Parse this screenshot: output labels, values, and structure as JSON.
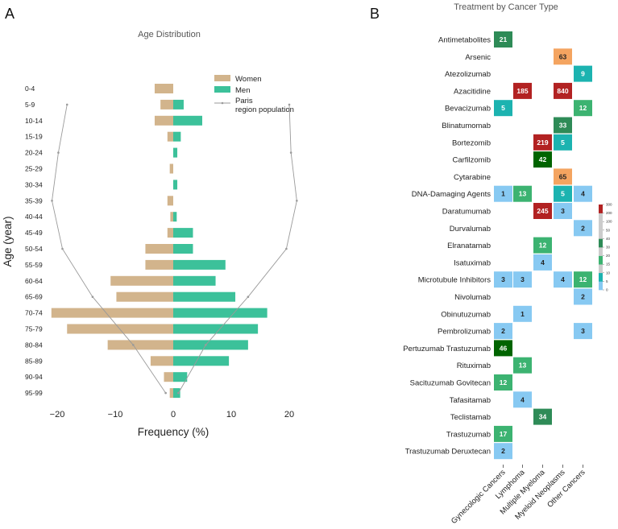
{
  "panels": {
    "left_letter": "A",
    "right_letter": "B"
  },
  "chart_data": [
    {
      "type": "bar",
      "orientation": "horizontal-pyramid",
      "title": "Age Distribution",
      "xlabel": "Frequency (%)",
      "ylabel": "Age (year)",
      "xlim": [
        -23,
        23
      ],
      "xticks": [
        -20,
        -10,
        0,
        10,
        20
      ],
      "xtick_labels": [
        "−20",
        "−10",
        "0",
        "10",
        "20"
      ],
      "categories": [
        "0-4",
        "5-9",
        "10-14",
        "15-19",
        "20-24",
        "25-29",
        "30-34",
        "35-39",
        "40-44",
        "45-49",
        "50-54",
        "55-59",
        "60-64",
        "65-69",
        "70-74",
        "75-79",
        "80-84",
        "85-89",
        "90-94",
        "95-99"
      ],
      "series": [
        {
          "name": "Women",
          "color": "#d2b48c",
          "values": [
            -3.2,
            -2.2,
            -3.2,
            -1.0,
            0.0,
            -0.6,
            0.0,
            -1.0,
            -0.5,
            -1.0,
            -4.8,
            -4.8,
            -10.8,
            -9.8,
            -21.0,
            -18.3,
            -11.3,
            -3.9,
            -1.6,
            -0.6
          ]
        },
        {
          "name": "Men",
          "color": "#3cc19a",
          "values": [
            0.0,
            1.8,
            5.0,
            1.3,
            0.7,
            0.0,
            0.7,
            0.0,
            0.6,
            3.4,
            3.4,
            9.0,
            7.3,
            10.7,
            16.2,
            14.6,
            12.9,
            9.6,
            2.4,
            1.2
          ]
        },
        {
          "name": "Paris region population",
          "color": "#9a9a9a",
          "style": "line",
          "left": [
            null,
            -18.3,
            null,
            null,
            -19.8,
            null,
            null,
            -20.9,
            null,
            null,
            -19.1,
            null,
            null,
            -13.9,
            null,
            null,
            -6.9,
            null,
            null,
            -1.3
          ],
          "right": [
            null,
            20.0,
            null,
            null,
            20.3,
            null,
            null,
            21.3,
            null,
            null,
            19.5,
            null,
            null,
            12.9,
            null,
            null,
            5.6,
            null,
            null,
            0.9
          ]
        }
      ],
      "legend_labels": [
        "Women",
        "Men",
        "Paris",
        "region population"
      ]
    },
    {
      "type": "heatmap",
      "title": "Treatment by Cancer Type",
      "rows": [
        "Antimetabolites",
        "Arsenic",
        "Atezolizumab",
        "Azacitidine",
        "Bevacizumab",
        "Blinatumomab",
        "Bortezomib",
        "Carfilzomib",
        "Cytarabine",
        "DNA-Damaging Agents",
        "Daratumumab",
        "Durvalumab",
        "Elranatamab",
        "Isatuximab",
        "Microtubule Inhibitors",
        "Nivolumab",
        "Obinutuzumab",
        "Pembrolizumab",
        "Pertuzumab Trastuzumab",
        "Rituximab",
        "Sacituzumab Govitecan",
        "Tafasitamab",
        "Teclistamab",
        "Trastuzumab",
        "Trastuzumab Deruxtecan"
      ],
      "columns": [
        "Gynecologic Cancers",
        "Lymphoma",
        "Multiple Myeloma",
        "Myeloid Neoplasms",
        "Other Cancers"
      ],
      "values": [
        [
          21,
          null,
          null,
          null,
          null
        ],
        [
          null,
          null,
          null,
          63,
          null
        ],
        [
          null,
          null,
          null,
          null,
          9
        ],
        [
          null,
          185,
          null,
          840,
          null
        ],
        [
          5,
          null,
          null,
          null,
          12
        ],
        [
          null,
          null,
          null,
          33,
          null
        ],
        [
          null,
          null,
          219,
          5,
          null
        ],
        [
          null,
          null,
          42,
          null,
          null
        ],
        [
          null,
          null,
          null,
          65,
          null
        ],
        [
          1,
          13,
          null,
          5,
          4
        ],
        [
          null,
          null,
          245,
          3,
          null
        ],
        [
          null,
          null,
          null,
          null,
          2
        ],
        [
          null,
          null,
          12,
          null,
          null
        ],
        [
          null,
          null,
          4,
          null,
          null
        ],
        [
          3,
          3,
          null,
          4,
          12
        ],
        [
          null,
          null,
          null,
          null,
          2
        ],
        [
          null,
          1,
          null,
          null,
          null
        ],
        [
          2,
          null,
          null,
          null,
          3
        ],
        [
          46,
          null,
          null,
          null,
          null
        ],
        [
          null,
          13,
          null,
          null,
          null
        ],
        [
          12,
          null,
          null,
          null,
          null
        ],
        [
          null,
          4,
          null,
          null,
          null
        ],
        [
          null,
          null,
          34,
          null,
          null
        ],
        [
          17,
          null,
          null,
          null,
          null
        ],
        [
          2,
          null,
          null,
          null,
          null
        ]
      ],
      "colorbar": {
        "ticks": [
          0,
          5,
          10,
          15,
          20,
          30,
          40,
          50,
          100,
          200,
          300
        ],
        "tick_labels": [
          "0",
          "5",
          "10",
          "15",
          "20",
          "30",
          "40",
          "50",
          "100",
          "200",
          "300"
        ],
        "bins": [
          {
            "min": 0,
            "max": 4,
            "color": "#87c9f2"
          },
          {
            "min": 5,
            "max": 10,
            "color": "#1cb3b0"
          },
          {
            "min": 11,
            "max": 20,
            "color": "#3cb371"
          },
          {
            "min": 21,
            "max": 40,
            "color": "#2e8b57"
          },
          {
            "min": 41,
            "max": 50,
            "color": "#006400"
          },
          {
            "min": 51,
            "max": 100,
            "color": "#f4a460"
          },
          {
            "min": 101,
            "max": 1000,
            "color": "#b22222"
          }
        ]
      }
    }
  ]
}
